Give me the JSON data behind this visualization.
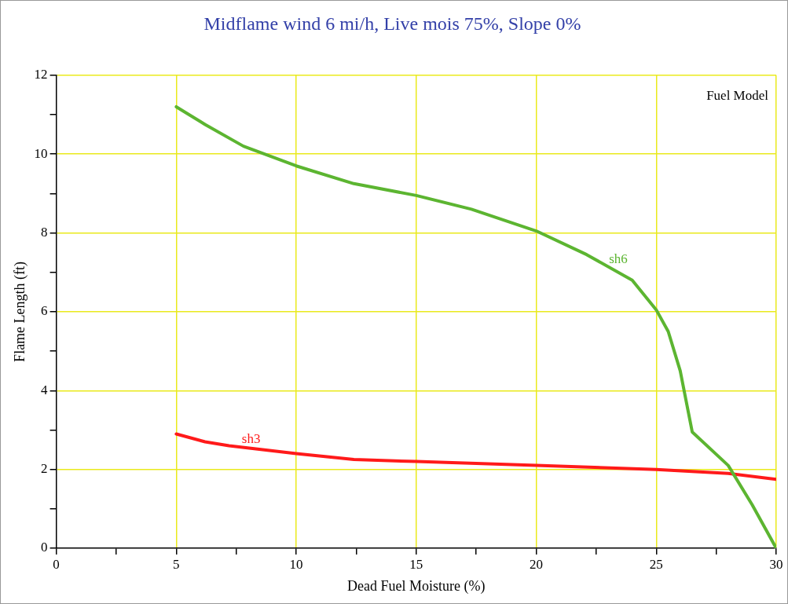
{
  "chart_data": {
    "type": "line",
    "title": "Midflame wind 6 mi/h, Live mois 75%, Slope 0%",
    "xlabel": "Dead Fuel Moisture (%)",
    "ylabel": "Flame Length (ft)",
    "annotations": [
      "Fuel Model"
    ],
    "grid": true,
    "marker": "none",
    "line_style": "solid",
    "xlim": [
      0,
      30
    ],
    "ylim": [
      0,
      12
    ],
    "xticks": [
      0,
      {
        "value": 2.5,
        "label": null
      },
      5,
      {
        "value": 7.5,
        "label": null
      },
      10,
      {
        "value": 12.5,
        "label": null
      },
      15,
      {
        "value": 17.5,
        "label": null
      },
      20,
      {
        "value": 22.5,
        "label": null
      },
      25,
      {
        "value": 27.5,
        "label": null
      },
      30
    ],
    "yticks": [
      0,
      {
        "value": 1,
        "label": null
      },
      2,
      {
        "value": 3,
        "label": null
      },
      4,
      {
        "value": 5,
        "label": null
      },
      6,
      {
        "value": 7,
        "label": null
      },
      8,
      {
        "value": 9,
        "label": null
      },
      10,
      {
        "value": 11,
        "label": null
      },
      12
    ],
    "series": [
      {
        "name": "sh6",
        "color": "#5cb531",
        "x": [
          5,
          6.2,
          7.8,
          10,
          12.4,
          15,
          17.3,
          20,
          22.1,
          24,
          25,
          25.5,
          26,
          26.5,
          28,
          29,
          30
        ],
        "values": [
          11.2,
          10.75,
          10.2,
          9.7,
          9.25,
          8.95,
          8.6,
          8.05,
          7.45,
          6.8,
          6.05,
          5.5,
          4.5,
          2.95,
          2.1,
          1.1,
          0
        ]
      },
      {
        "name": "sh3",
        "color": "#ff1a1a",
        "x": [
          5,
          6.2,
          7.2,
          10,
          12.4,
          15,
          20,
          25,
          28,
          30
        ],
        "values": [
          2.9,
          2.7,
          2.6,
          2.4,
          2.25,
          2.2,
          2.1,
          2.0,
          1.9,
          1.75
        ]
      }
    ]
  }
}
